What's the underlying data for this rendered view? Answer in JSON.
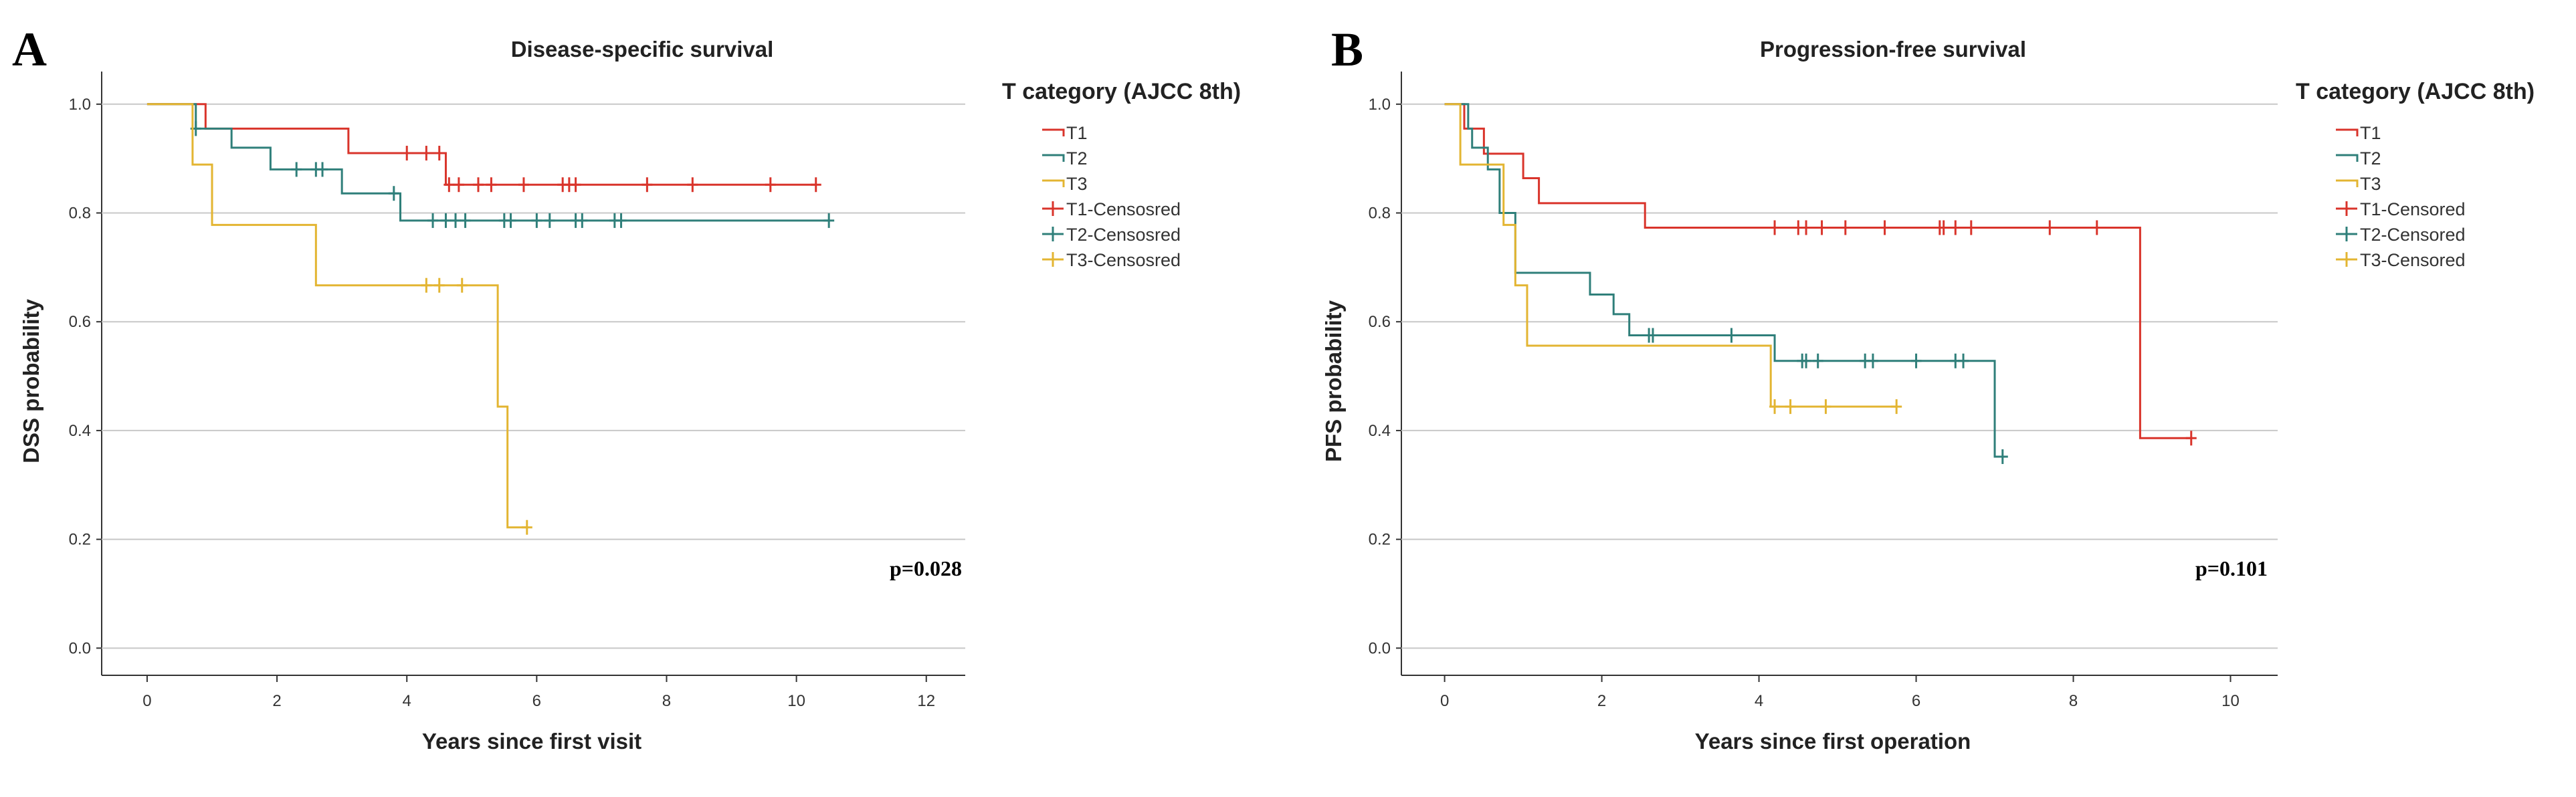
{
  "chart_data": [
    {
      "type": "line",
      "panel_label": "A",
      "title": "Disease-specific survival",
      "xlabel": "Years since first visit",
      "ylabel": "DSS probability",
      "xlim": [
        -0.7,
        12.6
      ],
      "ylim": [
        -0.05,
        1.06
      ],
      "xticks": [
        0,
        2,
        4,
        6,
        8,
        10,
        12
      ],
      "xtick_labels": [
        "0",
        "2",
        "4",
        "6",
        "8",
        "10",
        "12"
      ],
      "yticks": [
        0.0,
        0.2,
        0.4,
        0.6,
        0.8,
        1.0
      ],
      "ytick_labels": [
        "0.0",
        "0.2",
        "0.4",
        "0.6",
        "0.8",
        "1.0"
      ],
      "grid": "horizontal",
      "annotation": "p=0.028",
      "legend_title": "T category (AJCC 8th)",
      "legend_position": "right",
      "legend": [
        "T1",
        "T2",
        "T3",
        "T1-Censosred",
        "T2-Censosred",
        "T3-Censosred"
      ],
      "series": [
        {
          "name": "T1",
          "color": "#d9342b",
          "steps": [
            [
              0,
              1.0
            ],
            [
              0.9,
              0.955
            ],
            [
              3.1,
              0.91
            ],
            [
              4.6,
              0.852
            ],
            [
              10.3,
              0.852
            ]
          ],
          "censored": [
            4.0,
            4.3,
            4.5,
            4.65,
            4.8,
            5.1,
            5.3,
            5.8,
            6.4,
            6.5,
            6.6,
            7.7,
            8.4,
            9.6,
            10.3
          ]
        },
        {
          "name": "T2",
          "color": "#2f7f7a",
          "steps": [
            [
              0,
              1.0
            ],
            [
              0.75,
              0.955
            ],
            [
              1.3,
              0.92
            ],
            [
              1.9,
              0.88
            ],
            [
              3.0,
              0.836
            ],
            [
              3.9,
              0.786
            ],
            [
              10.5,
              0.786
            ]
          ],
          "censored": [
            0.75,
            2.3,
            2.6,
            2.7,
            3.8,
            4.4,
            4.6,
            4.75,
            4.9,
            5.5,
            5.6,
            6.0,
            6.2,
            6.6,
            6.7,
            7.2,
            7.3,
            10.5
          ]
        },
        {
          "name": "T3",
          "color": "#e3b532",
          "steps": [
            [
              0,
              1.0
            ],
            [
              0.7,
              0.889
            ],
            [
              1.0,
              0.778
            ],
            [
              2.6,
              0.667
            ],
            [
              5.4,
              0.444
            ],
            [
              5.55,
              0.222
            ],
            [
              5.85,
              0.222
            ]
          ],
          "censored": [
            4.3,
            4.5,
            4.85,
            5.85
          ]
        }
      ]
    },
    {
      "type": "line",
      "panel_label": "B",
      "title": "Progression-free survival",
      "xlabel": "Years since first operation",
      "ylabel": "PFS probability",
      "xlim": [
        -0.55,
        10.6
      ],
      "ylim": [
        -0.05,
        1.06
      ],
      "xticks": [
        0,
        2,
        4,
        6,
        8,
        10
      ],
      "xtick_labels": [
        "0",
        "2",
        "4",
        "6",
        "8",
        "10"
      ],
      "yticks": [
        0.0,
        0.2,
        0.4,
        0.6,
        0.8,
        1.0
      ],
      "ytick_labels": [
        "0.0",
        "0.2",
        "0.4",
        "0.6",
        "0.8",
        "1.0"
      ],
      "grid": "horizontal",
      "annotation": "p=0.101",
      "legend_title": "T category (AJCC 8th)",
      "legend_position": "right",
      "legend": [
        "T1",
        "T2",
        "T3",
        "T1-Censored",
        "T2-Censored",
        "T3-Censored"
      ],
      "series": [
        {
          "name": "T1",
          "color": "#d9342b",
          "steps": [
            [
              0,
              1.0
            ],
            [
              0.25,
              0.955
            ],
            [
              0.5,
              0.909
            ],
            [
              1.0,
              0.864
            ],
            [
              1.2,
              0.818
            ],
            [
              2.55,
              0.773
            ],
            [
              8.85,
              0.386
            ],
            [
              9.5,
              0.386
            ]
          ],
          "censored": [
            4.2,
            4.5,
            4.6,
            4.8,
            5.1,
            5.6,
            6.3,
            6.35,
            6.5,
            6.7,
            7.7,
            8.3,
            9.5
          ]
        },
        {
          "name": "T2",
          "color": "#2f7f7a",
          "steps": [
            [
              0,
              1.0
            ],
            [
              0.3,
              0.955
            ],
            [
              0.35,
              0.92
            ],
            [
              0.55,
              0.88
            ],
            [
              0.7,
              0.8
            ],
            [
              0.9,
              0.69
            ],
            [
              1.85,
              0.65
            ],
            [
              2.15,
              0.614
            ],
            [
              2.35,
              0.575
            ],
            [
              4.2,
              0.528
            ],
            [
              7.0,
              0.352
            ],
            [
              7.1,
              0.352
            ]
          ],
          "censored": [
            2.6,
            2.65,
            3.65,
            4.55,
            4.6,
            4.75,
            5.35,
            5.45,
            6.0,
            6.5,
            6.6,
            7.1
          ]
        },
        {
          "name": "T3",
          "color": "#e3b532",
          "steps": [
            [
              0,
              1.0
            ],
            [
              0.2,
              0.889
            ],
            [
              0.75,
              0.778
            ],
            [
              0.9,
              0.667
            ],
            [
              1.05,
              0.556
            ],
            [
              4.15,
              0.444
            ],
            [
              5.75,
              0.444
            ]
          ],
          "censored": [
            4.2,
            4.4,
            4.85,
            5.75
          ]
        }
      ]
    }
  ]
}
